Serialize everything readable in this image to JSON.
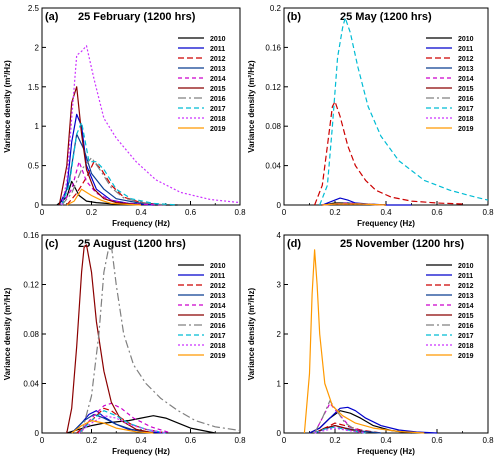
{
  "figure": {
    "legend_years": [
      "2010",
      "2011",
      "2012",
      "2013",
      "2014",
      "2015",
      "2016",
      "2017",
      "2018",
      "2019"
    ],
    "legend_styles": [
      {
        "color": "#000000",
        "dash": ""
      },
      {
        "color": "#0000cc",
        "dash": ""
      },
      {
        "color": "#cc0000",
        "dash": "6,3"
      },
      {
        "color": "#0b3d91",
        "dash": ""
      },
      {
        "color": "#cc00cc",
        "dash": "4,3"
      },
      {
        "color": "#8b0000",
        "dash": ""
      },
      {
        "color": "#808080",
        "dash": "8,3,2,3"
      },
      {
        "color": "#00bcd4",
        "dash": "5,3"
      },
      {
        "color": "#cc33ff",
        "dash": "2,2"
      },
      {
        "color": "#ff9900",
        "dash": ""
      }
    ]
  },
  "chart_data": [
    {
      "type": "line",
      "panel_label": "(a)",
      "title": "25 February (1200 hrs)",
      "xlabel": "Frequency (Hz)",
      "ylabel": "Variance density (m²/Hz)",
      "xlim": [
        0,
        0.8
      ],
      "ylim": [
        0,
        2.5
      ],
      "xticks": [
        "0",
        "0.2",
        "0.4",
        "0.6",
        "0.8"
      ],
      "yticks": [
        "0",
        "0.5",
        "1",
        "1.5",
        "2",
        "2.5"
      ],
      "series": [
        {
          "name": "2010",
          "x": [
            0.06,
            0.1,
            0.12,
            0.15,
            0.18,
            0.22,
            0.26,
            0.3,
            0.36,
            0.45,
            0.55
          ],
          "y": [
            0,
            0.1,
            0.3,
            0.12,
            0.05,
            0.03,
            0.02,
            0.01,
            0.01,
            0,
            0
          ]
        },
        {
          "name": "2011",
          "x": [
            0.07,
            0.1,
            0.12,
            0.14,
            0.16,
            0.18,
            0.22,
            0.28,
            0.35,
            0.45
          ],
          "y": [
            0,
            0.2,
            0.8,
            1.15,
            1.0,
            0.5,
            0.2,
            0.06,
            0.02,
            0
          ]
        },
        {
          "name": "2012",
          "x": [
            0.1,
            0.14,
            0.18,
            0.21,
            0.24,
            0.28,
            0.33,
            0.4,
            0.5
          ],
          "y": [
            0,
            0.15,
            0.35,
            0.55,
            0.45,
            0.25,
            0.1,
            0.03,
            0
          ]
        },
        {
          "name": "2013",
          "x": [
            0.08,
            0.11,
            0.14,
            0.17,
            0.2,
            0.25,
            0.3,
            0.4,
            0.5
          ],
          "y": [
            0,
            0.3,
            0.9,
            0.7,
            0.4,
            0.2,
            0.08,
            0.02,
            0
          ]
        },
        {
          "name": "2014",
          "x": [
            0.08,
            0.12,
            0.15,
            0.18,
            0.22,
            0.27,
            0.32,
            0.4,
            0.5
          ],
          "y": [
            0,
            0.2,
            0.55,
            0.3,
            0.15,
            0.07,
            0.03,
            0.01,
            0
          ]
        },
        {
          "name": "2015",
          "x": [
            0.07,
            0.1,
            0.12,
            0.14,
            0.16,
            0.18,
            0.21,
            0.25,
            0.3,
            0.4
          ],
          "y": [
            0,
            0.5,
            1.3,
            1.5,
            0.9,
            0.45,
            0.2,
            0.08,
            0.03,
            0
          ]
        },
        {
          "name": "2016",
          "x": [
            0.08,
            0.12,
            0.16,
            0.2,
            0.24,
            0.28,
            0.33,
            0.4,
            0.5
          ],
          "y": [
            0,
            0.15,
            0.45,
            0.6,
            0.42,
            0.22,
            0.09,
            0.03,
            0
          ]
        },
        {
          "name": "2017",
          "x": [
            0.08,
            0.11,
            0.14,
            0.16,
            0.19,
            0.22,
            0.25,
            0.3,
            0.36,
            0.45,
            0.55
          ],
          "y": [
            0,
            0.25,
            0.9,
            1.05,
            0.55,
            0.55,
            0.45,
            0.2,
            0.08,
            0.02,
            0
          ]
        },
        {
          "name": "2018",
          "x": [
            0.08,
            0.1,
            0.12,
            0.14,
            0.16,
            0.18,
            0.21,
            0.25,
            0.3,
            0.38,
            0.46,
            0.56,
            0.68,
            0.8
          ],
          "y": [
            0,
            0.3,
            1.1,
            1.9,
            1.95,
            2.02,
            1.6,
            1.1,
            0.85,
            0.55,
            0.32,
            0.16,
            0.07,
            0.03
          ]
        },
        {
          "name": "2019",
          "x": [
            0.1,
            0.13,
            0.16,
            0.2,
            0.24,
            0.28,
            0.33,
            0.4
          ],
          "y": [
            0,
            0.05,
            0.2,
            0.12,
            0.06,
            0.02,
            0.01,
            0
          ]
        }
      ]
    },
    {
      "type": "line",
      "panel_label": "(b)",
      "title": "25 May (1200 hrs)",
      "xlabel": "Frequency (Hz)",
      "ylabel": "Variance density (m²/Hz)",
      "xlim": [
        0,
        0.8
      ],
      "ylim": [
        0,
        0.2
      ],
      "xticks": [
        "0",
        "0.2",
        "0.4",
        "0.6",
        "0.8"
      ],
      "yticks": [
        "0",
        "0.04",
        "0.08",
        "0.12",
        "0.16",
        "0.2"
      ],
      "series": [
        {
          "name": "2010",
          "x": [
            0.15,
            0.2,
            0.25,
            0.3,
            0.4
          ],
          "y": [
            0,
            0.002,
            0.002,
            0.001,
            0
          ]
        },
        {
          "name": "2011",
          "x": [
            0.15,
            0.19,
            0.22,
            0.25,
            0.28,
            0.33,
            0.4,
            0.5
          ],
          "y": [
            0,
            0.004,
            0.007,
            0.005,
            0.002,
            0.001,
            0,
            0
          ]
        },
        {
          "name": "2012",
          "x": [
            0.12,
            0.15,
            0.17,
            0.19,
            0.2,
            0.22,
            0.25,
            0.28,
            0.32,
            0.36,
            0.42,
            0.5,
            0.6,
            0.7
          ],
          "y": [
            0,
            0.02,
            0.06,
            0.1,
            0.105,
            0.09,
            0.06,
            0.04,
            0.025,
            0.015,
            0.008,
            0.004,
            0.002,
            0.001
          ]
        },
        {
          "name": "2013",
          "x": [
            0.15,
            0.2,
            0.25,
            0.3,
            0.4
          ],
          "y": [
            0,
            0.001,
            0.002,
            0.001,
            0
          ]
        },
        {
          "name": "2014",
          "x": [
            0.15,
            0.2,
            0.25,
            0.3,
            0.4
          ],
          "y": [
            0,
            0.001,
            0.002,
            0.001,
            0
          ]
        },
        {
          "name": "2015",
          "x": [
            0.15,
            0.2,
            0.25,
            0.3,
            0.4
          ],
          "y": [
            0,
            0.001,
            0.001,
            0.001,
            0
          ]
        },
        {
          "name": "2016",
          "x": [
            0.15,
            0.2,
            0.25,
            0.3,
            0.4
          ],
          "y": [
            0,
            0.001,
            0.001,
            0.001,
            0
          ]
        },
        {
          "name": "2017",
          "x": [
            0.14,
            0.17,
            0.19,
            0.21,
            0.23,
            0.24,
            0.26,
            0.29,
            0.33,
            0.38,
            0.45,
            0.55,
            0.65,
            0.75,
            0.8
          ],
          "y": [
            0,
            0.02,
            0.08,
            0.15,
            0.18,
            0.19,
            0.175,
            0.14,
            0.1,
            0.07,
            0.045,
            0.025,
            0.015,
            0.008,
            0.005
          ]
        },
        {
          "name": "2018",
          "x": [
            0.15,
            0.2,
            0.25,
            0.3,
            0.4
          ],
          "y": [
            0,
            0.001,
            0.001,
            0.001,
            0
          ]
        },
        {
          "name": "2019",
          "x": [
            0.15,
            0.2,
            0.25,
            0.3,
            0.4
          ],
          "y": [
            0,
            0.001,
            0.001,
            0.001,
            0
          ]
        }
      ]
    },
    {
      "type": "line",
      "panel_label": "(c)",
      "title": "25 August (1200 hrs)",
      "xlabel": "Frequency (Hz)",
      "ylabel": "Variance density (m²/Hz)",
      "xlim": [
        0,
        0.8
      ],
      "ylim": [
        0,
        0.16
      ],
      "xticks": [
        "0",
        "0.2",
        "0.4",
        "0.6",
        "0.8"
      ],
      "yticks": [
        "0",
        "0.04",
        "0.08",
        "0.12",
        "0.16"
      ],
      "series": [
        {
          "name": "2010",
          "x": [
            0.1,
            0.15,
            0.2,
            0.25,
            0.3,
            0.35,
            0.4,
            0.45,
            0.5,
            0.55,
            0.6,
            0.7
          ],
          "y": [
            0,
            0.003,
            0.006,
            0.008,
            0.009,
            0.01,
            0.012,
            0.014,
            0.012,
            0.008,
            0.004,
            0
          ]
        },
        {
          "name": "2011",
          "x": [
            0.12,
            0.16,
            0.19,
            0.22,
            0.25,
            0.3,
            0.35,
            0.42,
            0.5
          ],
          "y": [
            0,
            0.008,
            0.015,
            0.018,
            0.013,
            0.007,
            0.003,
            0.001,
            0
          ]
        },
        {
          "name": "2012",
          "x": [
            0.14,
            0.2,
            0.25,
            0.28,
            0.32,
            0.36,
            0.42,
            0.5
          ],
          "y": [
            0,
            0.01,
            0.02,
            0.018,
            0.012,
            0.007,
            0.003,
            0
          ]
        },
        {
          "name": "2013",
          "x": [
            0.12,
            0.17,
            0.21,
            0.25,
            0.3,
            0.36,
            0.45
          ],
          "y": [
            0,
            0.01,
            0.015,
            0.012,
            0.007,
            0.003,
            0
          ]
        },
        {
          "name": "2014",
          "x": [
            0.15,
            0.2,
            0.25,
            0.28,
            0.32,
            0.37,
            0.44,
            0.52
          ],
          "y": [
            0,
            0.012,
            0.022,
            0.024,
            0.02,
            0.012,
            0.005,
            0
          ]
        },
        {
          "name": "2015",
          "x": [
            0.1,
            0.12,
            0.14,
            0.16,
            0.17,
            0.18,
            0.2,
            0.22,
            0.25,
            0.28,
            0.32,
            0.38,
            0.45
          ],
          "y": [
            0,
            0.02,
            0.07,
            0.13,
            0.15,
            0.152,
            0.13,
            0.09,
            0.05,
            0.025,
            0.01,
            0.003,
            0
          ]
        },
        {
          "name": "2016",
          "x": [
            0.16,
            0.2,
            0.23,
            0.25,
            0.27,
            0.28,
            0.3,
            0.33,
            0.37,
            0.42,
            0.48,
            0.55,
            0.62,
            0.7,
            0.8
          ],
          "y": [
            0,
            0.03,
            0.08,
            0.13,
            0.15,
            0.152,
            0.12,
            0.08,
            0.055,
            0.04,
            0.028,
            0.018,
            0.01,
            0.005,
            0.002
          ]
        },
        {
          "name": "2017",
          "x": [
            0.15,
            0.2,
            0.25,
            0.3,
            0.35,
            0.42,
            0.5
          ],
          "y": [
            0,
            0.01,
            0.018,
            0.014,
            0.008,
            0.003,
            0
          ]
        },
        {
          "name": "2018",
          "x": [
            0.15,
            0.2,
            0.25,
            0.3,
            0.35,
            0.42,
            0.5
          ],
          "y": [
            0,
            0.008,
            0.014,
            0.012,
            0.007,
            0.003,
            0
          ]
        },
        {
          "name": "2019",
          "x": [
            0.12,
            0.16,
            0.2,
            0.25,
            0.3,
            0.38,
            0.45
          ],
          "y": [
            0,
            0.006,
            0.01,
            0.008,
            0.004,
            0.001,
            0
          ]
        }
      ]
    },
    {
      "type": "line",
      "panel_label": "(d)",
      "title": "25 November (1200 hrs)",
      "xlabel": "Frequency (Hz)",
      "ylabel": "Variance density (m²/Hz)",
      "xlim": [
        0,
        0.8
      ],
      "ylim": [
        0,
        4
      ],
      "xticks": [
        "0",
        "0.2",
        "0.4",
        "0.6",
        "0.8"
      ],
      "yticks": [
        "0",
        "1",
        "2",
        "3",
        "4"
      ],
      "series": [
        {
          "name": "2010",
          "x": [
            0.1,
            0.14,
            0.18,
            0.22,
            0.26,
            0.3,
            0.35,
            0.42,
            0.5
          ],
          "y": [
            0,
            0.1,
            0.3,
            0.45,
            0.4,
            0.3,
            0.15,
            0.05,
            0
          ]
        },
        {
          "name": "2011",
          "x": [
            0.1,
            0.14,
            0.18,
            0.22,
            0.25,
            0.28,
            0.32,
            0.38,
            0.45,
            0.52,
            0.6
          ],
          "y": [
            0,
            0.1,
            0.3,
            0.5,
            0.52,
            0.45,
            0.3,
            0.15,
            0.06,
            0.02,
            0
          ]
        },
        {
          "name": "2012",
          "x": [
            0.12,
            0.16,
            0.2,
            0.24,
            0.3,
            0.38
          ],
          "y": [
            0,
            0.1,
            0.2,
            0.15,
            0.06,
            0
          ]
        },
        {
          "name": "2013",
          "x": [
            0.12,
            0.16,
            0.2,
            0.24,
            0.3,
            0.38
          ],
          "y": [
            0,
            0.08,
            0.15,
            0.1,
            0.04,
            0
          ]
        },
        {
          "name": "2014",
          "x": [
            0.12,
            0.15,
            0.18,
            0.22,
            0.26,
            0.32
          ],
          "y": [
            0,
            0.3,
            0.6,
            0.35,
            0.12,
            0
          ]
        },
        {
          "name": "2015",
          "x": [
            0.12,
            0.16,
            0.2,
            0.25,
            0.32
          ],
          "y": [
            0,
            0.1,
            0.15,
            0.08,
            0
          ]
        },
        {
          "name": "2016",
          "x": [
            0.12,
            0.15,
            0.18,
            0.2,
            0.24,
            0.3
          ],
          "y": [
            0,
            0.3,
            0.65,
            0.5,
            0.2,
            0
          ]
        },
        {
          "name": "2017",
          "x": [
            0.12,
            0.16,
            0.2,
            0.25,
            0.32
          ],
          "y": [
            0,
            0.08,
            0.12,
            0.06,
            0
          ]
        },
        {
          "name": "2018",
          "x": [
            0.12,
            0.16,
            0.2,
            0.25,
            0.32
          ],
          "y": [
            0,
            0.05,
            0.1,
            0.05,
            0
          ]
        },
        {
          "name": "2019",
          "x": [
            0.08,
            0.1,
            0.11,
            0.12,
            0.13,
            0.14,
            0.16,
            0.19,
            0.23,
            0.28,
            0.35,
            0.45,
            0.55
          ],
          "y": [
            0,
            1.2,
            2.8,
            3.7,
            3.0,
            2.0,
            1.0,
            0.55,
            0.35,
            0.2,
            0.1,
            0.03,
            0
          ]
        }
      ]
    }
  ]
}
